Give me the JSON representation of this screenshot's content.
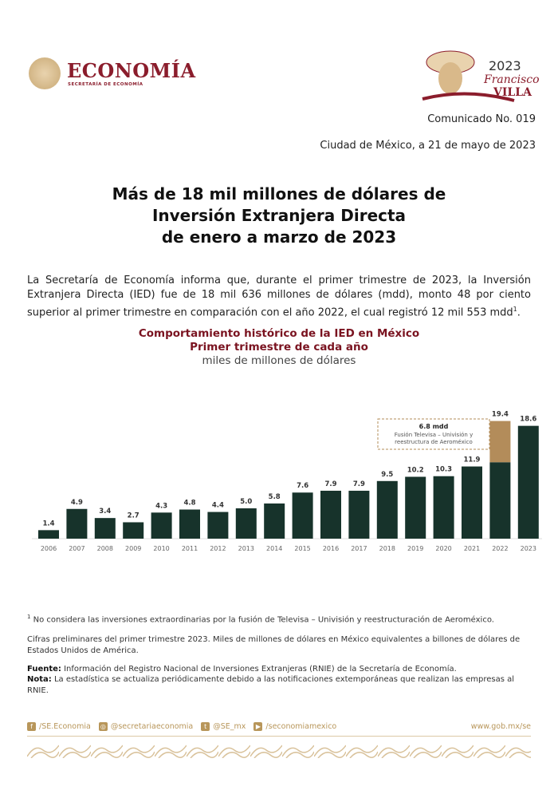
{
  "header": {
    "logo_text": "ECONOMÍA",
    "logo_sub": "SECRETARÍA DE ECONOMÍA",
    "villa_logo": {
      "year": "2023",
      "line": "Francisco",
      "name": "VILLA"
    }
  },
  "comunicado": "Comunicado No. 019",
  "fecha": "Ciudad de México, a 21 de mayo de 2023",
  "title": [
    "Más de 18 mil millones de dólares de",
    "Inversión Extranjera Directa",
    "de enero a marzo de 2023"
  ],
  "intro": "La Secretaría de Economía informa que, durante el primer trimestre de 2023, la Inversión Extranjera Directa (IED) fue de 18 mil 636 millones de dólares (mdd), monto 48 por ciento superior al primer trimestre en comparación con el año 2022, el cual registró 12 mil 553 mdd",
  "intro_sup": "1",
  "chart_data": {
    "type": "bar",
    "title": "Comportamiento histórico de la IED en México",
    "subtitle": "Primer trimestre de cada año",
    "ylabel": "miles de millones de dólares",
    "categories": [
      "2006",
      "2007",
      "2008",
      "2009",
      "2010",
      "2011",
      "2012",
      "2013",
      "2014",
      "2015",
      "2016",
      "2017",
      "2018",
      "2019",
      "2020",
      "2021",
      "2022",
      "2023"
    ],
    "values": [
      1.4,
      4.9,
      3.4,
      2.7,
      4.3,
      4.8,
      4.4,
      5.0,
      5.8,
      7.6,
      7.9,
      7.9,
      9.5,
      10.2,
      10.3,
      11.9,
      19.4,
      18.6
    ],
    "labels": [
      "1.4",
      "4.9",
      "3.4",
      "2.7",
      "4.3",
      "4.8",
      "4.4",
      "5.0",
      "5.8",
      "7.6",
      "7.9",
      "7.9",
      "9.5",
      "10.2",
      "10.3",
      "11.9",
      "19.4",
      "18.6"
    ],
    "extraordinary": {
      "category": "2022",
      "value": 6.8,
      "label": "6.8 mdd",
      "note_lines": [
        "Fusión Televisa – Univisión y",
        "reestructura de Aeroméxico"
      ]
    },
    "colors": {
      "bar": "#17332b",
      "extraordinary": "#b38c5a",
      "title": "#7a1320"
    },
    "ylim": [
      0,
      20
    ],
    "grid": false,
    "legend": "none"
  },
  "footnotes": {
    "fn1_sup": "1",
    "fn1": "No considera las inversiones extraordinarias por la fusión de Televisa – Univisión y reestructuración de Aeroméxico.",
    "fn2": "Cifras preliminares del primer trimestre 2023. Miles de millones de dólares en México equivalentes a billones de dólares de Estados Unidos de América.",
    "fuente_label": "Fuente:",
    "fuente": "Información del Registro Nacional de Inversiones Extranjeras (RNIE) de la Secretaría de Economía.",
    "nota_label": "Nota:",
    "nota": "La estadística se actualiza periódicamente debido a las notificaciones extemporáneas que realizan las empresas al RNIE."
  },
  "footer": {
    "social": [
      {
        "icon": "facebook-icon",
        "glyph": "f",
        "label": "/SE.Economia"
      },
      {
        "icon": "instagram-icon",
        "glyph": "◎",
        "label": "@secretariaeconomia"
      },
      {
        "icon": "twitter-icon",
        "glyph": "t",
        "label": "@SE_mx"
      },
      {
        "icon": "youtube-icon",
        "glyph": "▶",
        "label": "/seconomiamexico"
      }
    ],
    "web": "www.gob.mx/se"
  }
}
